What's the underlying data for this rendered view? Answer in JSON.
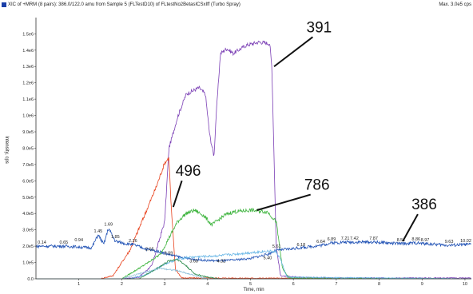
{
  "header": {
    "title": "XIC of +MRM (8 pairs): 386.0/122.0 amu from Sample 5 (FLTestD10) of FLtestNo2BetasICSxIff (Turbo Spray)",
    "max": "Max. 3.0e5 cps"
  },
  "chart_data": {
    "type": "line",
    "title": "XIC of +MRM (8 pairs): 386.0/122.0 amu from Sample 5 (FLTestD10) of FLtestNo2BetasICSxIff (Turbo Spray)",
    "xlabel": "Time, min",
    "ylabel": "Intensity, cps",
    "xlim": [
      0,
      10.15
    ],
    "ylim": [
      0,
      1580000.0
    ],
    "x_ticks": [
      1,
      2,
      3,
      4,
      5,
      6,
      7,
      8,
      9,
      10
    ],
    "y_ticks": [
      {
        "v": 0,
        "label": "0.0"
      },
      {
        "v": 100000,
        "label": "1.0e5"
      },
      {
        "v": 200000,
        "label": "2.0e5"
      },
      {
        "v": 300000,
        "label": "3.0e5"
      },
      {
        "v": 400000,
        "label": "4.0e5"
      },
      {
        "v": 500000,
        "label": "5.0e5"
      },
      {
        "v": 600000,
        "label": "6.0e5"
      },
      {
        "v": 700000,
        "label": "7.0e5"
      },
      {
        "v": 800000,
        "label": "8.0e5"
      },
      {
        "v": 900000,
        "label": "9.0e5"
      },
      {
        "v": 1000000,
        "label": "1.0e6"
      },
      {
        "v": 1100000,
        "label": "1.1e6"
      },
      {
        "v": 1200000,
        "label": "1.2e6"
      },
      {
        "v": 1300000,
        "label": "1.3e6"
      },
      {
        "v": 1400000,
        "label": "1.4e6"
      },
      {
        "v": 1500000,
        "label": "1.5e6"
      }
    ],
    "series": [
      {
        "color": "#7b3fb5",
        "x": [
          0,
          2.0,
          2.4,
          2.7,
          3.0,
          3.1,
          3.3,
          3.5,
          3.8,
          3.95,
          4.05,
          4.15,
          4.2,
          4.3,
          4.45,
          4.6,
          4.9,
          5.2,
          5.45,
          5.5,
          5.6,
          5.7,
          5.8,
          6.2,
          7.0,
          10.15
        ],
        "y": [
          0,
          0,
          10000,
          80000,
          350000,
          800000,
          990000,
          1130000,
          1170000,
          1130000,
          880000,
          750000,
          1000000,
          1380000,
          1410000,
          1380000,
          1430000,
          1450000,
          1440000,
          1290000,
          200000,
          20000,
          15000,
          10000,
          5000,
          5000
        ]
      },
      {
        "color": "#e8431e",
        "x": [
          0,
          1.5,
          1.8,
          2.2,
          2.5,
          2.8,
          3.0,
          3.1,
          3.15,
          3.25,
          3.4,
          10.15
        ],
        "y": [
          0,
          0,
          20000,
          180000,
          370000,
          560000,
          710000,
          740000,
          450000,
          60000,
          5000,
          0
        ]
      },
      {
        "color": "#3bb33b",
        "x": [
          0,
          2.0,
          2.5,
          2.9,
          3.1,
          3.3,
          3.5,
          3.7,
          3.9,
          4.1,
          4.4,
          4.6,
          5.0,
          5.4,
          5.6,
          5.75,
          5.9,
          10.15
        ],
        "y": [
          0,
          0,
          80000,
          150000,
          250000,
          350000,
          400000,
          420000,
          390000,
          330000,
          390000,
          410000,
          420000,
          410000,
          350000,
          60000,
          5000,
          0
        ]
      },
      {
        "color": "#1e50b4",
        "x": [
          0,
          0.14,
          0.65,
          1.0,
          1.3,
          1.45,
          1.58,
          1.69,
          1.85,
          2.1,
          2.26,
          2.6,
          2.9,
          3.09,
          3.4,
          3.68,
          4.0,
          4.32,
          4.6,
          5.0,
          5.4,
          5.61,
          6.18,
          6.64,
          6.89,
          7.21,
          7.42,
          7.87,
          8.51,
          8.86,
          9.07,
          9.63,
          10.02,
          10.15
        ],
        "y": [
          200000,
          200000,
          200000,
          195000,
          190000,
          270000,
          210000,
          310000,
          230000,
          215000,
          210000,
          180000,
          165000,
          150000,
          130000,
          120000,
          112000,
          110000,
          115000,
          125000,
          150000,
          175000,
          190000,
          205000,
          220000,
          225000,
          225000,
          225000,
          215000,
          220000,
          215000,
          205000,
          210000,
          210000
        ]
      },
      {
        "color": "#6ab7e6",
        "x": [
          0,
          2.2,
          2.6,
          3.0,
          3.3,
          3.5,
          3.8,
          4.2,
          4.6,
          5.0,
          5.4,
          5.6,
          5.7,
          5.85,
          10.15
        ],
        "y": [
          0,
          0,
          30000,
          90000,
          120000,
          130000,
          135000,
          140000,
          150000,
          160000,
          170000,
          165000,
          120000,
          10000,
          0
        ]
      },
      {
        "color": "#2a8a4a",
        "x": [
          0,
          2.4,
          2.8,
          3.1,
          3.3,
          3.5,
          3.7,
          4.0,
          4.3,
          10.15
        ],
        "y": [
          0,
          0,
          60000,
          110000,
          120000,
          80000,
          30000,
          10000,
          0,
          0
        ]
      },
      {
        "color": "#8fbfd8",
        "x": [
          0,
          2.0,
          2.4,
          2.9,
          3.3,
          3.7,
          4.0,
          10.15
        ],
        "y": [
          0,
          0,
          30000,
          65000,
          50000,
          20000,
          0,
          0
        ]
      }
    ],
    "peak_labels": [
      {
        "text": "0.14",
        "x": 0.14,
        "y": 200000
      },
      {
        "text": "0.65",
        "x": 0.65,
        "y": 200000
      },
      {
        "text": "0.94",
        "x": 1.0,
        "y": 215000
      },
      {
        "text": "1.45",
        "x": 1.45,
        "y": 270000
      },
      {
        "text": "1.69",
        "x": 1.69,
        "y": 310000
      },
      {
        "text": "1.85",
        "x": 1.85,
        "y": 235000
      },
      {
        "text": "2.26",
        "x": 2.26,
        "y": 210000
      },
      {
        "text": "2.65",
        "x": 2.65,
        "y": 160000
      },
      {
        "text": "3.09",
        "x": 3.09,
        "y": 135000
      },
      {
        "text": "3.68",
        "x": 3.68,
        "y": 85000
      },
      {
        "text": "4.32",
        "x": 4.32,
        "y": 85000
      },
      {
        "text": "5.40",
        "x": 5.4,
        "y": 105000
      },
      {
        "text": "5.61",
        "x": 5.61,
        "y": 175000
      },
      {
        "text": "6.18",
        "x": 6.18,
        "y": 185000
      },
      {
        "text": "6.64",
        "x": 6.64,
        "y": 205000
      },
      {
        "text": "6.89",
        "x": 6.89,
        "y": 220000
      },
      {
        "text": "7.21",
        "x": 7.21,
        "y": 225000
      },
      {
        "text": "7.42",
        "x": 7.42,
        "y": 225000
      },
      {
        "text": "7.87",
        "x": 7.87,
        "y": 225000
      },
      {
        "text": "8.51",
        "x": 8.51,
        "y": 215000
      },
      {
        "text": "8.86",
        "x": 8.86,
        "y": 220000
      },
      {
        "text": "8.97",
        "x": 9.07,
        "y": 215000
      },
      {
        "text": "9.63",
        "x": 9.63,
        "y": 205000
      },
      {
        "text": "10.02",
        "x": 10.02,
        "y": 210000
      }
    ],
    "annotations": [
      {
        "text": "391",
        "x": 6.6,
        "y": 1510000,
        "arrow_to": [
          5.55,
          1300000
        ]
      },
      {
        "text": "496",
        "x": 3.55,
        "y": 630000,
        "arrow_to": [
          3.2,
          440000
        ]
      },
      {
        "text": "786",
        "x": 6.55,
        "y": 545000,
        "arrow_to": [
          5.15,
          420000
        ]
      },
      {
        "text": "386",
        "x": 9.05,
        "y": 425000,
        "arrow_to": [
          8.55,
          230000
        ]
      }
    ]
  }
}
